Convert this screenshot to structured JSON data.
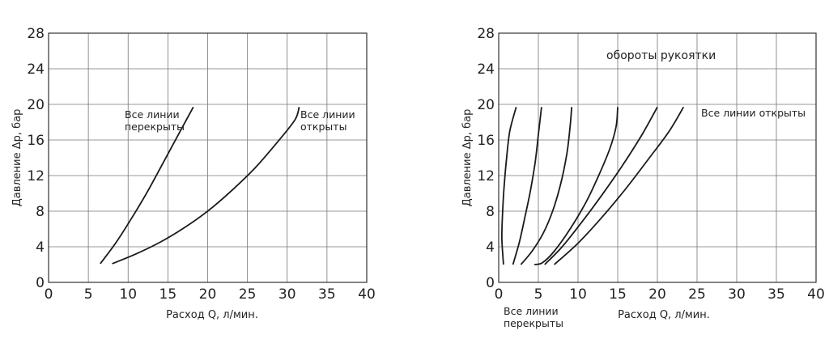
{
  "chart_data": [
    {
      "type": "line",
      "xlabel": "Расход Q, л/мин.",
      "ylabel": "Давление Δp, бар",
      "xlim": [
        0,
        40
      ],
      "ylim": [
        0,
        28
      ],
      "xticks": [
        "0",
        "5",
        "10",
        "15",
        "20",
        "25",
        "30",
        "35",
        "40"
      ],
      "yticks": [
        "0",
        "4",
        "8",
        "12",
        "16",
        "20",
        "24",
        "28"
      ],
      "grid": true,
      "annotations": [
        {
          "id": "closed",
          "lines": [
            "Все линии",
            "перекрыты"
          ],
          "at": [
            9.5,
            18.7
          ]
        },
        {
          "id": "open",
          "lines": [
            "Все линии",
            "открыты"
          ],
          "at": [
            31.5,
            18.7
          ]
        }
      ],
      "series": [
        {
          "points": [
            [
              6.5,
              2.1
            ],
            [
              8.5,
              4.5
            ],
            [
              10.5,
              7.3
            ],
            [
              12.5,
              10.3
            ],
            [
              14.5,
              13.6
            ],
            [
              16.5,
              16.9
            ],
            [
              18.2,
              19.7
            ]
          ]
        },
        {
          "points": [
            [
              8.0,
              2.1
            ],
            [
              11.0,
              3.2
            ],
            [
              14.0,
              4.5
            ],
            [
              17.0,
              6.1
            ],
            [
              20.0,
              8.0
            ],
            [
              23.0,
              10.3
            ],
            [
              26.0,
              12.9
            ],
            [
              29.0,
              16.0
            ],
            [
              31.0,
              18.3
            ],
            [
              31.5,
              19.7
            ]
          ]
        }
      ]
    },
    {
      "type": "line",
      "xlabel": "Расход Q, л/мин.",
      "ylabel": "Давление Δp, бар",
      "xlim": [
        0,
        40
      ],
      "ylim": [
        0,
        28
      ],
      "xticks": [
        "0",
        "5",
        "10",
        "15",
        "20",
        "25",
        "30",
        "35",
        "40"
      ],
      "yticks": [
        "0",
        "4",
        "8",
        "12",
        "16",
        "20",
        "24",
        "28"
      ],
      "grid": true,
      "annotations": [
        {
          "id": "handle",
          "lines": [
            "обороты рукоятки"
          ],
          "at": [
            13.5,
            25.2
          ]
        },
        {
          "id": "open",
          "lines": [
            "Все линии открыты"
          ],
          "at": [
            25.5,
            18.7
          ]
        },
        {
          "id": "closed",
          "lines": [
            "Все линии",
            "перекрыты"
          ],
          "at": [
            0.5,
            -3.0
          ]
        }
      ],
      "series": [
        {
          "points": [
            [
              0.6,
              2.0
            ],
            [
              0.4,
              5.0
            ],
            [
              0.5,
              8.0
            ],
            [
              0.7,
              11.0
            ],
            [
              1.0,
              14.0
            ],
            [
              1.4,
              17.0
            ],
            [
              2.2,
              19.7
            ]
          ]
        },
        {
          "points": [
            [
              1.8,
              2.0
            ],
            [
              2.6,
              4.5
            ],
            [
              3.3,
              7.3
            ],
            [
              4.0,
              10.3
            ],
            [
              4.6,
              13.5
            ],
            [
              5.0,
              16.6
            ],
            [
              5.4,
              19.7
            ]
          ]
        },
        {
          "points": [
            [
              2.8,
              2.0
            ],
            [
              4.2,
              3.5
            ],
            [
              5.6,
              5.5
            ],
            [
              6.8,
              8.0
            ],
            [
              7.8,
              11.0
            ],
            [
              8.6,
              14.5
            ],
            [
              9.0,
              17.5
            ],
            [
              9.2,
              19.7
            ]
          ]
        },
        {
          "points": [
            [
              4.5,
              2.0
            ],
            [
              5.5,
              2.2
            ],
            [
              7.0,
              3.5
            ],
            [
              9.0,
              6.0
            ],
            [
              11.0,
              9.0
            ],
            [
              12.6,
              12.0
            ],
            [
              14.0,
              15.0
            ],
            [
              14.8,
              17.5
            ],
            [
              15.0,
              19.7
            ]
          ]
        },
        {
          "points": [
            [
              5.8,
              2.0
            ],
            [
              8.0,
              4.0
            ],
            [
              10.5,
              6.8
            ],
            [
              13.0,
              9.8
            ],
            [
              15.5,
              13.0
            ],
            [
              18.0,
              16.5
            ],
            [
              20.0,
              19.7
            ]
          ]
        },
        {
          "points": [
            [
              7.0,
              2.0
            ],
            [
              10.0,
              4.4
            ],
            [
              13.0,
              7.3
            ],
            [
              16.0,
              10.5
            ],
            [
              19.0,
              14.0
            ],
            [
              21.5,
              17.0
            ],
            [
              23.3,
              19.7
            ]
          ]
        }
      ]
    }
  ]
}
